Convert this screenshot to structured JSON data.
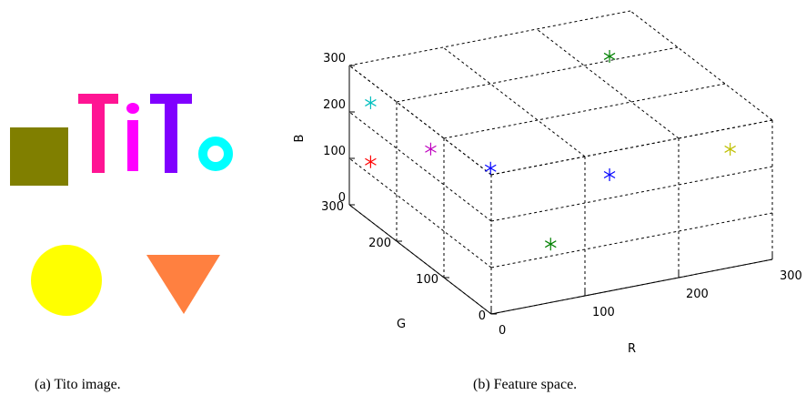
{
  "captions": [
    "(a)  Tito image.",
    "(b)  Feature space."
  ],
  "chart_data": {
    "type": "scatter3d",
    "xlabel": "R",
    "ylabel": "G",
    "zlabel": "B",
    "xlim": [
      0,
      300
    ],
    "ylim": [
      0,
      300
    ],
    "zlim": [
      0,
      300
    ],
    "xticks": [
      0,
      100,
      200,
      300
    ],
    "yticks": [
      0,
      100,
      200,
      300
    ],
    "zticks": [
      0,
      100,
      200,
      300
    ],
    "grid": true,
    "points": [
      {
        "x": 0,
        "y": 255,
        "z": 255,
        "color": "#00bfbf"
      },
      {
        "x": 0,
        "y": 255,
        "z": 128,
        "color": "#ff0000"
      },
      {
        "x": 0,
        "y": 128,
        "z": 255,
        "color": "#bf00bf"
      },
      {
        "x": 128,
        "y": 255,
        "z": 64,
        "color": "#0000ff"
      },
      {
        "x": 255,
        "y": 255,
        "z": 0,
        "color": "#0000ff"
      },
      {
        "x": 255,
        "y": 0,
        "z": 255,
        "color": "#bfbf00"
      },
      {
        "x": 128,
        "y": 128,
        "z": 0,
        "color": "#008000"
      },
      {
        "x": 255,
        "y": 255,
        "z": 255,
        "color": "#008000"
      }
    ]
  }
}
